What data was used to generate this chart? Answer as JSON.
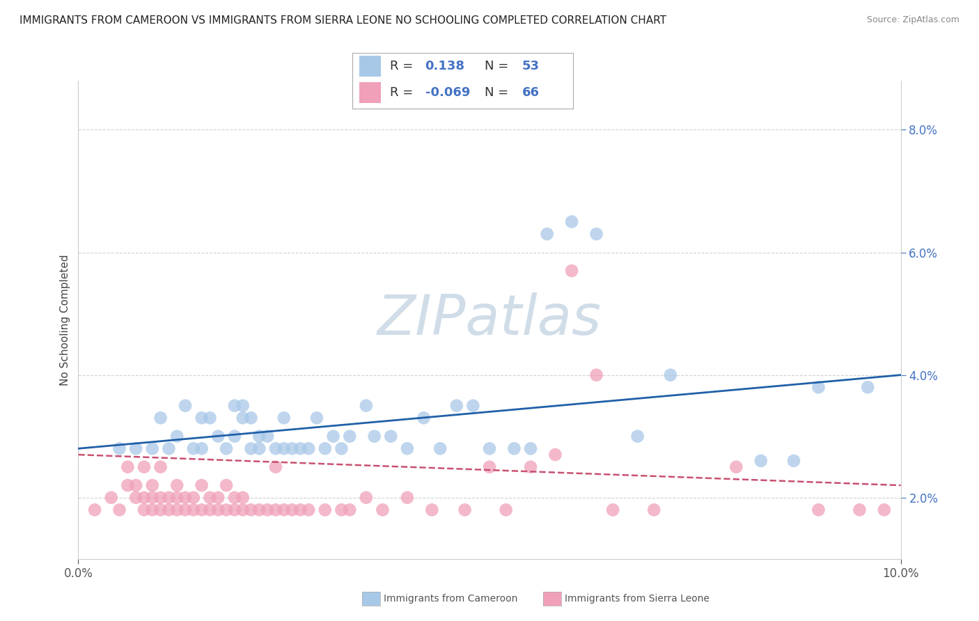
{
  "title": "IMMIGRANTS FROM CAMEROON VS IMMIGRANTS FROM SIERRA LEONE NO SCHOOLING COMPLETED CORRELATION CHART",
  "source": "Source: ZipAtlas.com",
  "ylabel": "No Schooling Completed",
  "xlim": [
    0.0,
    0.1
  ],
  "ylim": [
    0.01,
    0.088
  ],
  "yticks_right": [
    0.02,
    0.04,
    0.06,
    0.08
  ],
  "xticks": [
    0.0,
    0.1
  ],
  "cameroon_color": "#a8c8e8",
  "sierra_leone_color": "#f0a0b8",
  "blue_line_color": "#2060a8",
  "pink_line_color": "#c85070",
  "watermark": "ZIPatlas",
  "watermark_color": "#d0dde8",
  "cameroon_scatter": [
    [
      0.005,
      0.028
    ],
    [
      0.007,
      0.028
    ],
    [
      0.009,
      0.028
    ],
    [
      0.01,
      0.033
    ],
    [
      0.011,
      0.028
    ],
    [
      0.012,
      0.03
    ],
    [
      0.013,
      0.035
    ],
    [
      0.014,
      0.028
    ],
    [
      0.015,
      0.028
    ],
    [
      0.015,
      0.033
    ],
    [
      0.016,
      0.033
    ],
    [
      0.017,
      0.03
    ],
    [
      0.018,
      0.028
    ],
    [
      0.019,
      0.03
    ],
    [
      0.019,
      0.035
    ],
    [
      0.02,
      0.033
    ],
    [
      0.02,
      0.035
    ],
    [
      0.021,
      0.028
    ],
    [
      0.021,
      0.033
    ],
    [
      0.022,
      0.028
    ],
    [
      0.022,
      0.03
    ],
    [
      0.023,
      0.03
    ],
    [
      0.024,
      0.028
    ],
    [
      0.025,
      0.028
    ],
    [
      0.025,
      0.033
    ],
    [
      0.026,
      0.028
    ],
    [
      0.027,
      0.028
    ],
    [
      0.028,
      0.028
    ],
    [
      0.029,
      0.033
    ],
    [
      0.03,
      0.028
    ],
    [
      0.031,
      0.03
    ],
    [
      0.032,
      0.028
    ],
    [
      0.033,
      0.03
    ],
    [
      0.035,
      0.035
    ],
    [
      0.036,
      0.03
    ],
    [
      0.038,
      0.03
    ],
    [
      0.04,
      0.028
    ],
    [
      0.042,
      0.033
    ],
    [
      0.044,
      0.028
    ],
    [
      0.046,
      0.035
    ],
    [
      0.048,
      0.035
    ],
    [
      0.05,
      0.028
    ],
    [
      0.053,
      0.028
    ],
    [
      0.055,
      0.028
    ],
    [
      0.057,
      0.063
    ],
    [
      0.06,
      0.065
    ],
    [
      0.063,
      0.063
    ],
    [
      0.068,
      0.03
    ],
    [
      0.072,
      0.04
    ],
    [
      0.083,
      0.026
    ],
    [
      0.087,
      0.026
    ],
    [
      0.09,
      0.038
    ],
    [
      0.096,
      0.038
    ]
  ],
  "sierra_leone_scatter": [
    [
      0.002,
      0.018
    ],
    [
      0.004,
      0.02
    ],
    [
      0.005,
      0.018
    ],
    [
      0.006,
      0.022
    ],
    [
      0.006,
      0.025
    ],
    [
      0.007,
      0.02
    ],
    [
      0.007,
      0.022
    ],
    [
      0.008,
      0.018
    ],
    [
      0.008,
      0.02
    ],
    [
      0.008,
      0.025
    ],
    [
      0.009,
      0.018
    ],
    [
      0.009,
      0.02
    ],
    [
      0.009,
      0.022
    ],
    [
      0.01,
      0.018
    ],
    [
      0.01,
      0.02
    ],
    [
      0.01,
      0.025
    ],
    [
      0.011,
      0.018
    ],
    [
      0.011,
      0.02
    ],
    [
      0.012,
      0.018
    ],
    [
      0.012,
      0.02
    ],
    [
      0.012,
      0.022
    ],
    [
      0.013,
      0.018
    ],
    [
      0.013,
      0.02
    ],
    [
      0.014,
      0.018
    ],
    [
      0.014,
      0.02
    ],
    [
      0.015,
      0.018
    ],
    [
      0.015,
      0.022
    ],
    [
      0.016,
      0.018
    ],
    [
      0.016,
      0.02
    ],
    [
      0.017,
      0.018
    ],
    [
      0.017,
      0.02
    ],
    [
      0.018,
      0.018
    ],
    [
      0.018,
      0.022
    ],
    [
      0.019,
      0.018
    ],
    [
      0.019,
      0.02
    ],
    [
      0.02,
      0.018
    ],
    [
      0.02,
      0.02
    ],
    [
      0.021,
      0.018
    ],
    [
      0.022,
      0.018
    ],
    [
      0.023,
      0.018
    ],
    [
      0.024,
      0.018
    ],
    [
      0.024,
      0.025
    ],
    [
      0.025,
      0.018
    ],
    [
      0.026,
      0.018
    ],
    [
      0.027,
      0.018
    ],
    [
      0.028,
      0.018
    ],
    [
      0.03,
      0.018
    ],
    [
      0.032,
      0.018
    ],
    [
      0.033,
      0.018
    ],
    [
      0.035,
      0.02
    ],
    [
      0.037,
      0.018
    ],
    [
      0.04,
      0.02
    ],
    [
      0.043,
      0.018
    ],
    [
      0.047,
      0.018
    ],
    [
      0.05,
      0.025
    ],
    [
      0.052,
      0.018
    ],
    [
      0.055,
      0.025
    ],
    [
      0.058,
      0.027
    ],
    [
      0.06,
      0.057
    ],
    [
      0.063,
      0.04
    ],
    [
      0.065,
      0.018
    ],
    [
      0.07,
      0.018
    ],
    [
      0.08,
      0.025
    ],
    [
      0.09,
      0.018
    ],
    [
      0.095,
      0.018
    ],
    [
      0.098,
      0.018
    ]
  ],
  "blue_line_x": [
    0.0,
    0.1
  ],
  "blue_line_y": [
    0.028,
    0.04
  ],
  "pink_line_x": [
    0.0,
    0.1
  ],
  "pink_line_y": [
    0.027,
    0.022
  ],
  "background_color": "#ffffff",
  "grid_color": "#cccccc",
  "title_fontsize": 11,
  "axis_label_fontsize": 11,
  "tick_fontsize": 12,
  "legend_fontsize": 13,
  "legend_R1": "0.138",
  "legend_N1": "53",
  "legend_R2": "-0.069",
  "legend_N2": "66"
}
